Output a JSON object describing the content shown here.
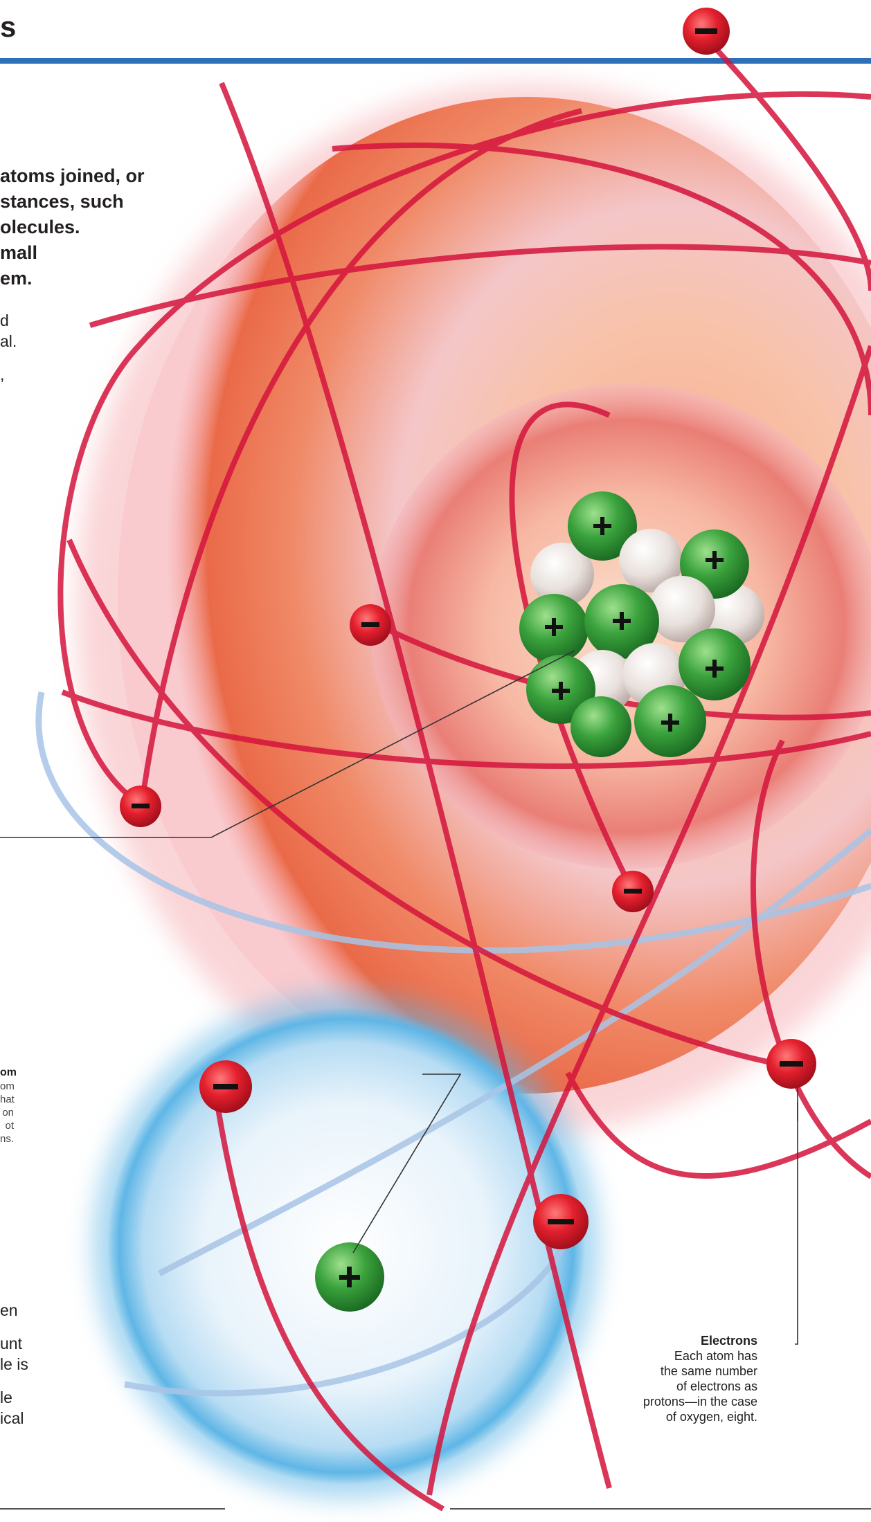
{
  "header": {
    "title_fragment": "s",
    "rule_color": "#2e6fba"
  },
  "intro": {
    "lines": [
      "atoms joined, or",
      "stances, such",
      "olecules.",
      "mall",
      "em."
    ]
  },
  "body_top": {
    "lines": [
      "d",
      "al.",
      "",
      ","
    ]
  },
  "hydrogen_caption": {
    "title": "om",
    "lines": [
      "om",
      "hat",
      "on",
      "ot",
      "ns."
    ]
  },
  "body_bottom": {
    "lines": [
      "en",
      "",
      "unt",
      "le is",
      "",
      "le",
      "ical"
    ]
  },
  "electrons_caption": {
    "title": "Electrons",
    "lines": [
      "Each atom has",
      "the same number",
      "of electrons as",
      "protons—in the case",
      "of oxygen, eight."
    ]
  },
  "colors": {
    "oxygen_cloud": "#ec6a4a",
    "hydrogen_cloud": "#5fb6e6",
    "orbit_red": "#d4143c",
    "orbit_blue": "#a8c4e6",
    "electron": "#e4202e",
    "proton": "#3aa23c",
    "neutron": "#e8e0dc"
  },
  "icons": {
    "electron": "minus-sign",
    "proton": "plus-sign"
  }
}
